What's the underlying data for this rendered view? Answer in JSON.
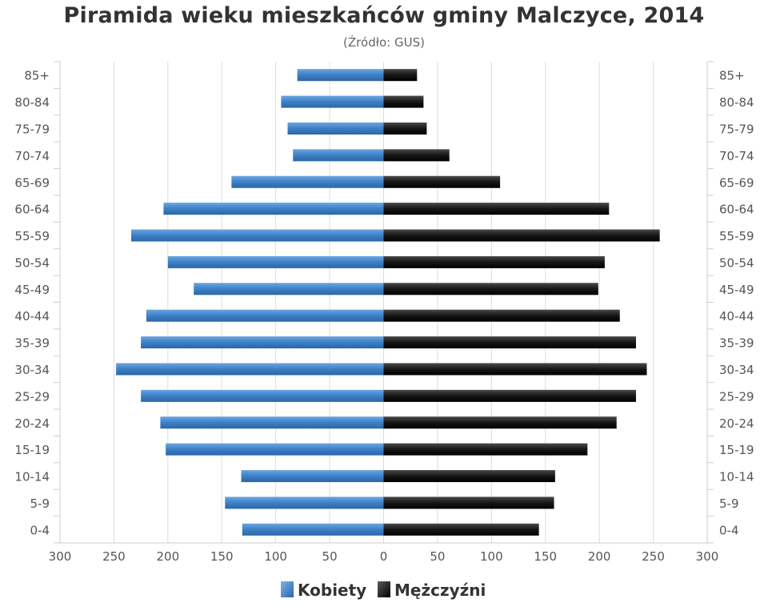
{
  "chart_data": {
    "type": "bar",
    "orientation": "horizontal",
    "layout": "population-pyramid",
    "title": "Piramida wieku mieszkańców gminy Malczyce, 2014",
    "subtitle": "(Źródło: GUS)",
    "categories": [
      "85+",
      "80-84",
      "75-79",
      "70-74",
      "65-69",
      "60-64",
      "55-59",
      "50-54",
      "45-49",
      "40-44",
      "35-39",
      "30-34",
      "25-29",
      "20-24",
      "15-19",
      "10-14",
      "5-9",
      "0-4"
    ],
    "series": [
      {
        "name": "Kobiety",
        "side": "left",
        "color": "#4a8bd1",
        "values": [
          80,
          95,
          89,
          84,
          141,
          204,
          234,
          200,
          176,
          220,
          225,
          248,
          225,
          207,
          202,
          132,
          147,
          131
        ]
      },
      {
        "name": "Mężczyźni",
        "side": "right",
        "color": "#1a1a1a",
        "values": [
          31,
          37,
          40,
          61,
          108,
          209,
          256,
          205,
          199,
          219,
          234,
          244,
          234,
          216,
          189,
          159,
          158,
          144
        ]
      }
    ],
    "xlim": [
      -300,
      300
    ],
    "xticks": [
      -300,
      -250,
      -200,
      -150,
      -100,
      -50,
      0,
      50,
      100,
      150,
      200,
      250,
      300
    ],
    "xtick_labels": [
      "300",
      "250",
      "200",
      "150",
      "100",
      "50",
      "0",
      "50",
      "100",
      "150",
      "200",
      "250",
      "300"
    ],
    "grid": true,
    "legend_position": "bottom-center"
  }
}
